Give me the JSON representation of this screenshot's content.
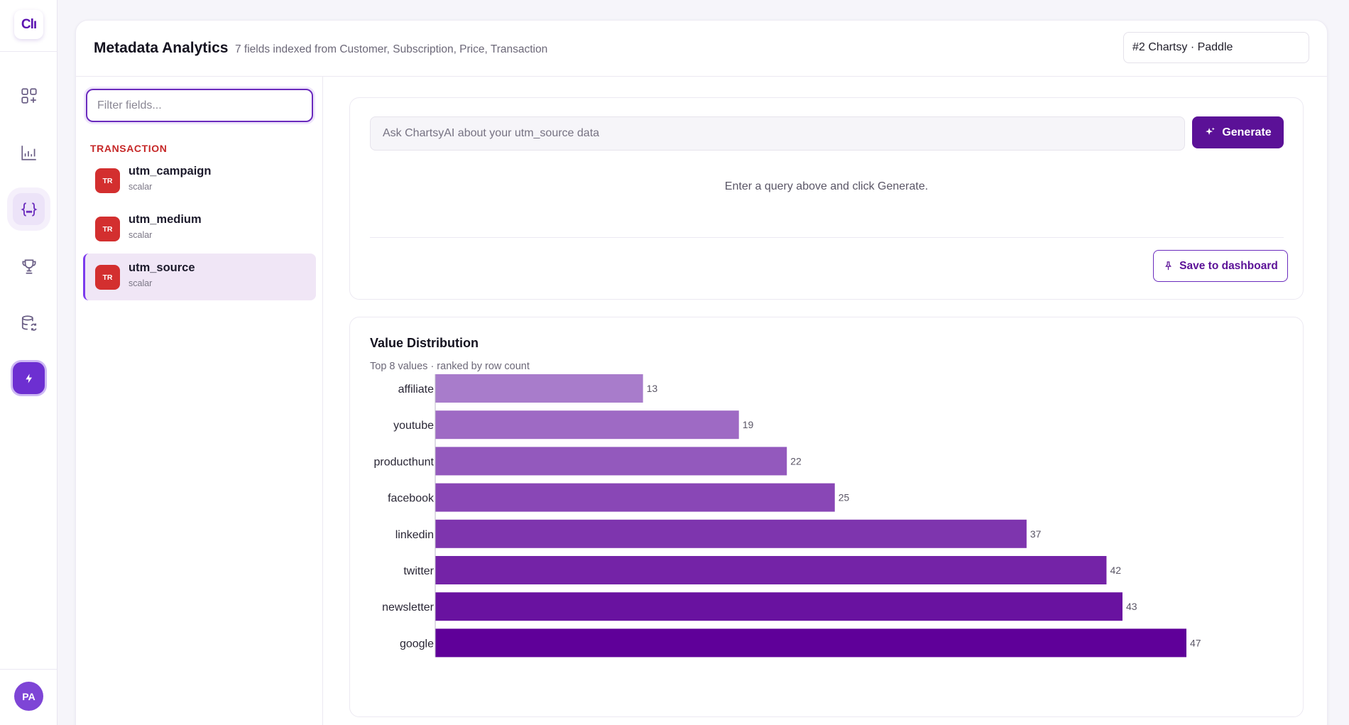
{
  "app": {
    "logo_text": "Clı",
    "avatar_initials": "PA"
  },
  "rail": {
    "items": [
      {
        "icon": "apps-add-icon"
      },
      {
        "icon": "bar-chart-icon"
      },
      {
        "icon": "braces-icon",
        "active": true
      },
      {
        "icon": "trophy-icon"
      },
      {
        "icon": "database-sync-icon"
      },
      {
        "icon": "lightning-icon"
      }
    ]
  },
  "header": {
    "title": "Metadata Analytics",
    "subtitle": "7 fields indexed from Customer, Subscription, Price, Transaction",
    "project": "#2 Chartsy · Paddle"
  },
  "fields_panel": {
    "filter_placeholder": "Filter fields...",
    "group": "TRANSACTION",
    "items": [
      {
        "badge": "TR",
        "name": "utm_campaign",
        "type": "scalar"
      },
      {
        "badge": "TR",
        "name": "utm_medium",
        "type": "scalar"
      },
      {
        "badge": "TR",
        "name": "utm_source",
        "type": "scalar",
        "selected": true
      }
    ]
  },
  "query": {
    "placeholder": "Ask ChartsyAI about your utm_source data",
    "generate_label": "Generate",
    "hint": "Enter a query above and click Generate.",
    "save_label": "Save to dashboard"
  },
  "colors": {
    "accent": "#5b1197",
    "badge_red": "#d32f2f",
    "group_label": "#c62828",
    "bar_light": "#a87ccb",
    "bar_dark": "#5f0099"
  },
  "chart_data": {
    "type": "bar",
    "orientation": "horizontal",
    "title": "Value Distribution",
    "subtitle": "Top 8 values · ranked by row count",
    "categories": [
      "affiliate",
      "youtube",
      "producthunt",
      "facebook",
      "linkedin",
      "twitter",
      "newsletter",
      "google"
    ],
    "values": [
      13,
      19,
      22,
      25,
      37,
      42,
      43,
      47
    ],
    "xlim": [
      0,
      47
    ],
    "grid": false
  }
}
